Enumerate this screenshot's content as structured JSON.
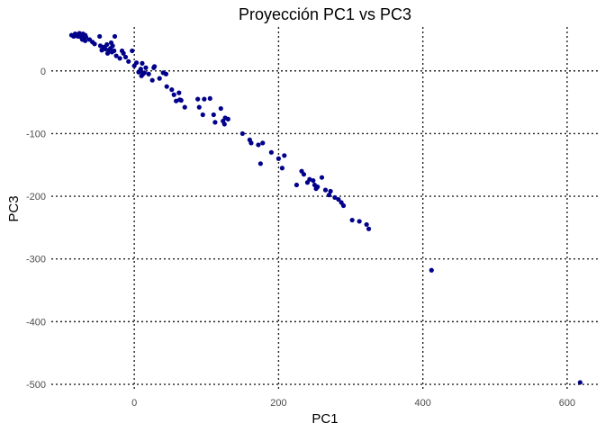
{
  "chart_data": {
    "type": "scatter",
    "title": "Proyección PC1 vs PC3",
    "xlabel": "PC1",
    "ylabel": "PC3",
    "xlim": [
      -115,
      645
    ],
    "ylim": [
      -510,
      70
    ],
    "xticks": [
      0,
      200,
      400,
      600
    ],
    "xtick_labels": [
      "0",
      "200",
      "400",
      "600"
    ],
    "yticks": [
      0,
      -100,
      -200,
      -300,
      -400,
      -500
    ],
    "ytick_labels": [
      "0",
      "-100",
      "-200",
      "-300",
      "-400",
      "-500"
    ],
    "grid": true,
    "point_color": "#00008b",
    "points": [
      [
        -87,
        57
      ],
      [
        -84,
        55
      ],
      [
        -82,
        59
      ],
      [
        -80,
        56
      ],
      [
        -79,
        58
      ],
      [
        -78,
        55
      ],
      [
        -76,
        60
      ],
      [
        -75,
        57
      ],
      [
        -74,
        54
      ],
      [
        -73,
        58
      ],
      [
        -72,
        56
      ],
      [
        -71,
        59
      ],
      [
        -70,
        55
      ],
      [
        -68,
        57
      ],
      [
        -67,
        54
      ],
      [
        -72,
        50
      ],
      [
        -68,
        48
      ],
      [
        -62,
        50
      ],
      [
        -58,
        46
      ],
      [
        -55,
        43
      ],
      [
        -48,
        55
      ],
      [
        -47,
        40
      ],
      [
        -45,
        33
      ],
      [
        -42,
        38
      ],
      [
        -40,
        35
      ],
      [
        -38,
        42
      ],
      [
        -37,
        28
      ],
      [
        -35,
        33
      ],
      [
        -33,
        36
      ],
      [
        -32,
        45
      ],
      [
        -31,
        30
      ],
      [
        -30,
        40
      ],
      [
        -28,
        32
      ],
      [
        -27,
        55
      ],
      [
        -25,
        24
      ],
      [
        -20,
        20
      ],
      [
        -17,
        32
      ],
      [
        -15,
        28
      ],
      [
        -12,
        22
      ],
      [
        -8,
        15
      ],
      [
        -3,
        32
      ],
      [
        0,
        8
      ],
      [
        3,
        13
      ],
      [
        6,
        -2
      ],
      [
        8,
        0
      ],
      [
        9,
        3
      ],
      [
        10,
        -8
      ],
      [
        11,
        12
      ],
      [
        12,
        -5
      ],
      [
        14,
        -3
      ],
      [
        16,
        5
      ],
      [
        20,
        -5
      ],
      [
        25,
        -15
      ],
      [
        27,
        5
      ],
      [
        28,
        7
      ],
      [
        35,
        -12
      ],
      [
        40,
        -3
      ],
      [
        44,
        -5
      ],
      [
        45,
        -25
      ],
      [
        52,
        -30
      ],
      [
        55,
        -38
      ],
      [
        58,
        -48
      ],
      [
        62,
        -35
      ],
      [
        63,
        -46
      ],
      [
        65,
        -47
      ],
      [
        70,
        -58
      ],
      [
        88,
        -45
      ],
      [
        90,
        -58
      ],
      [
        95,
        -70
      ],
      [
        97,
        -45
      ],
      [
        105,
        -44
      ],
      [
        110,
        -70
      ],
      [
        112,
        -82
      ],
      [
        120,
        -60
      ],
      [
        123,
        -80
      ],
      [
        125,
        -85
      ],
      [
        126,
        -75
      ],
      [
        130,
        -77
      ],
      [
        150,
        -100
      ],
      [
        160,
        -110
      ],
      [
        162,
        -115
      ],
      [
        172,
        -118
      ],
      [
        175,
        -148
      ],
      [
        178,
        -115
      ],
      [
        190,
        -130
      ],
      [
        200,
        -140
      ],
      [
        205,
        -155
      ],
      [
        208,
        -135
      ],
      [
        225,
        -182
      ],
      [
        232,
        -160
      ],
      [
        235,
        -165
      ],
      [
        240,
        -178
      ],
      [
        243,
        -173
      ],
      [
        248,
        -175
      ],
      [
        250,
        -182
      ],
      [
        252,
        -188
      ],
      [
        254,
        -185
      ],
      [
        260,
        -170
      ],
      [
        265,
        -190
      ],
      [
        270,
        -198
      ],
      [
        272,
        -192
      ],
      [
        278,
        -202
      ],
      [
        283,
        -205
      ],
      [
        287,
        -210
      ],
      [
        290,
        -215
      ],
      [
        302,
        -238
      ],
      [
        312,
        -240
      ],
      [
        322,
        -245
      ],
      [
        325,
        -252
      ],
      [
        412,
        -318
      ],
      [
        618,
        -497
      ]
    ]
  }
}
